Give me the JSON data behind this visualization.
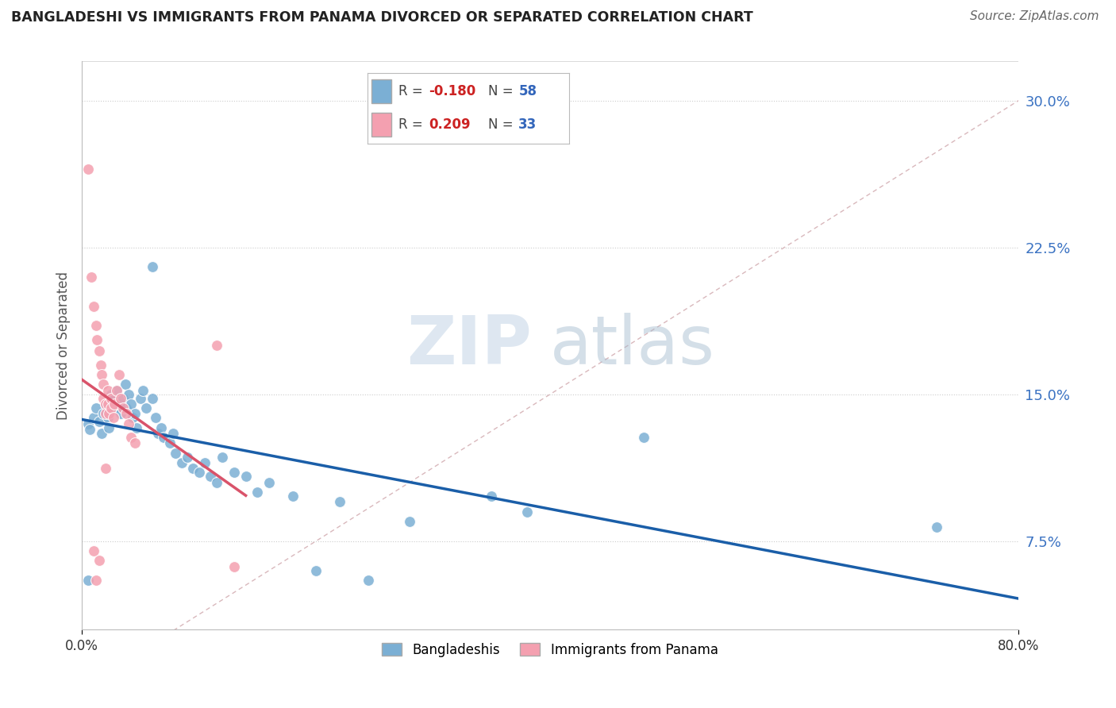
{
  "title": "BANGLADESHI VS IMMIGRANTS FROM PANAMA DIVORCED OR SEPARATED CORRELATION CHART",
  "source": "Source: ZipAtlas.com",
  "ylabel": "Divorced or Separated",
  "ytick_values": [
    0.075,
    0.15,
    0.225,
    0.3
  ],
  "xlim": [
    0.0,
    0.8
  ],
  "ylim": [
    0.03,
    0.32
  ],
  "legend_blue_R": "-0.180",
  "legend_blue_N": "58",
  "legend_pink_R": "0.209",
  "legend_pink_N": "33",
  "legend_label_blue": "Bangladeshis",
  "legend_label_pink": "Immigrants from Panama",
  "blue_color": "#7BAFD4",
  "pink_color": "#F4A0B0",
  "blue_line_color": "#1A5EA8",
  "pink_line_color": "#D9536A",
  "diagonal_color": "#D9B8BC",
  "watermark_zip": "ZIP",
  "watermark_atlas": "atlas",
  "blue_points": [
    [
      0.005,
      0.135
    ],
    [
      0.007,
      0.132
    ],
    [
      0.01,
      0.138
    ],
    [
      0.012,
      0.143
    ],
    [
      0.015,
      0.136
    ],
    [
      0.017,
      0.13
    ],
    [
      0.018,
      0.14
    ],
    [
      0.02,
      0.145
    ],
    [
      0.022,
      0.138
    ],
    [
      0.023,
      0.133
    ],
    [
      0.025,
      0.15
    ],
    [
      0.027,
      0.142
    ],
    [
      0.028,
      0.148
    ],
    [
      0.03,
      0.152
    ],
    [
      0.032,
      0.145
    ],
    [
      0.033,
      0.14
    ],
    [
      0.035,
      0.148
    ],
    [
      0.037,
      0.155
    ],
    [
      0.038,
      0.143
    ],
    [
      0.04,
      0.15
    ],
    [
      0.042,
      0.145
    ],
    [
      0.043,
      0.138
    ],
    [
      0.045,
      0.14
    ],
    [
      0.047,
      0.133
    ],
    [
      0.05,
      0.148
    ],
    [
      0.052,
      0.152
    ],
    [
      0.055,
      0.143
    ],
    [
      0.06,
      0.148
    ],
    [
      0.063,
      0.138
    ],
    [
      0.065,
      0.13
    ],
    [
      0.068,
      0.133
    ],
    [
      0.07,
      0.128
    ],
    [
      0.075,
      0.125
    ],
    [
      0.078,
      0.13
    ],
    [
      0.08,
      0.12
    ],
    [
      0.085,
      0.115
    ],
    [
      0.09,
      0.118
    ],
    [
      0.095,
      0.112
    ],
    [
      0.1,
      0.11
    ],
    [
      0.105,
      0.115
    ],
    [
      0.11,
      0.108
    ],
    [
      0.115,
      0.105
    ],
    [
      0.12,
      0.118
    ],
    [
      0.13,
      0.11
    ],
    [
      0.14,
      0.108
    ],
    [
      0.15,
      0.1
    ],
    [
      0.16,
      0.105
    ],
    [
      0.18,
      0.098
    ],
    [
      0.22,
      0.095
    ],
    [
      0.28,
      0.085
    ],
    [
      0.35,
      0.098
    ],
    [
      0.38,
      0.09
    ],
    [
      0.48,
      0.128
    ],
    [
      0.73,
      0.082
    ],
    [
      0.06,
      0.215
    ],
    [
      0.005,
      0.055
    ],
    [
      0.2,
      0.06
    ],
    [
      0.245,
      0.055
    ]
  ],
  "pink_points": [
    [
      0.005,
      0.265
    ],
    [
      0.008,
      0.21
    ],
    [
      0.01,
      0.195
    ],
    [
      0.012,
      0.185
    ],
    [
      0.013,
      0.178
    ],
    [
      0.015,
      0.172
    ],
    [
      0.016,
      0.165
    ],
    [
      0.017,
      0.16
    ],
    [
      0.018,
      0.155
    ],
    [
      0.018,
      0.148
    ],
    [
      0.02,
      0.145
    ],
    [
      0.02,
      0.14
    ],
    [
      0.022,
      0.152
    ],
    [
      0.022,
      0.145
    ],
    [
      0.023,
      0.14
    ],
    [
      0.025,
      0.148
    ],
    [
      0.025,
      0.143
    ],
    [
      0.027,
      0.138
    ],
    [
      0.028,
      0.145
    ],
    [
      0.03,
      0.152
    ],
    [
      0.032,
      0.16
    ],
    [
      0.033,
      0.148
    ],
    [
      0.035,
      0.143
    ],
    [
      0.038,
      0.14
    ],
    [
      0.04,
      0.135
    ],
    [
      0.042,
      0.128
    ],
    [
      0.045,
      0.125
    ],
    [
      0.01,
      0.07
    ],
    [
      0.012,
      0.055
    ],
    [
      0.015,
      0.065
    ],
    [
      0.13,
      0.062
    ],
    [
      0.02,
      0.112
    ],
    [
      0.115,
      0.175
    ]
  ]
}
